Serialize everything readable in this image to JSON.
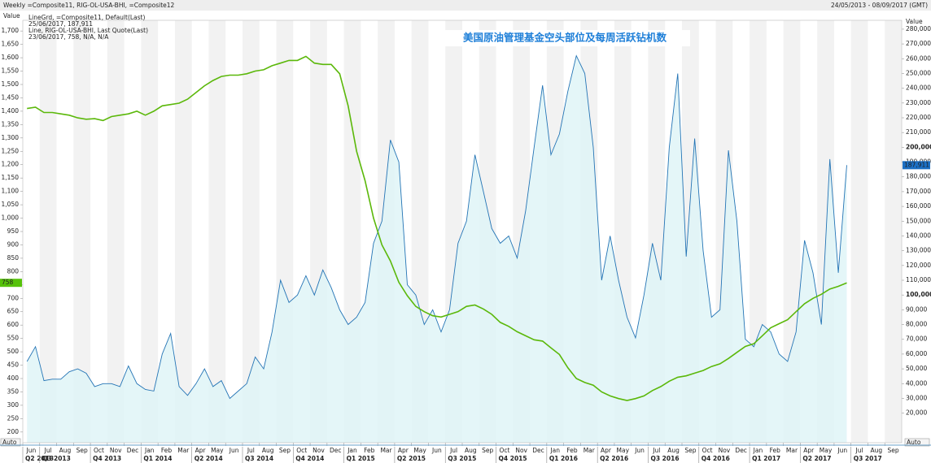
{
  "chart_data": {
    "type": "line",
    "title": "美国原油管理基金空头部位及每周活跃钻机数",
    "header_left": "Weekly =Composite11, RIG-OL-USA-BHI, =Composite12",
    "header_right": "24/05/2013 - 08/09/2017 (GMT)",
    "y_label": "Value",
    "y2_label": "Value",
    "corner_left": "Auto",
    "corner_right": "Auto",
    "categories": [
      "Jun",
      null,
      "Jul",
      null,
      "Aug",
      null,
      "Sep",
      null,
      "Oct",
      null,
      "Nov",
      null,
      "Dec",
      null,
      "Jan",
      null,
      "Feb",
      null,
      "Mar",
      null,
      "Apr",
      null,
      "May",
      null,
      "Jun",
      null,
      "Jul",
      null,
      "Aug",
      null,
      "Sep",
      null,
      "Oct",
      null,
      "Nov",
      null,
      "Dec",
      null,
      "Jan",
      null,
      "Feb",
      null,
      "Mar",
      null,
      "Apr",
      null,
      "May",
      null,
      "Jun",
      null,
      "Jul",
      null,
      "Aug",
      null,
      "Sep",
      null,
      "Oct",
      null,
      "Nov",
      null,
      "Dec",
      null,
      "Jan",
      null,
      "Feb",
      null,
      "Mar",
      null,
      "Apr",
      null,
      "May",
      null,
      "Jun",
      null,
      "Jul",
      null,
      "Aug",
      null,
      "Sep",
      null,
      "Oct",
      null,
      "Nov",
      null,
      "Dec",
      null,
      "Jan",
      null,
      "Feb",
      null,
      "Mar",
      null,
      "Apr",
      null,
      "May",
      null,
      "Jun",
      null,
      "Jul",
      null,
      "Aug",
      null,
      "Sep",
      null
    ],
    "quarters": [
      "Q2 2013",
      "Q3 2013",
      "Q4 2013",
      "Q1 2014",
      "Q2 2014",
      "Q3 2014",
      "Q4 2014",
      "Q1 2015",
      "Q2 2015",
      "Q3 2015",
      "Q4 2015",
      "Q1 2016",
      "Q2 2016",
      "Q3 2016",
      "Q4 2016",
      "Q1 2017",
      "Q2 2017",
      "Q3 2017"
    ],
    "series": [
      {
        "name": "LineGrd, =Composite11, Default(Last)",
        "detail": "25/06/2017, 187,911",
        "flag_label": "187,911",
        "color": "#2474b5",
        "area_color": "#dff4f7",
        "axis": "y2",
        "values": [
          55000,
          65000,
          42000,
          43000,
          43000,
          48000,
          50000,
          47000,
          38000,
          40000,
          40000,
          38000,
          52000,
          40000,
          36000,
          35000,
          60000,
          74000,
          38000,
          32000,
          40000,
          50000,
          38000,
          42000,
          30000,
          35000,
          40000,
          58000,
          50000,
          75000,
          110000,
          95000,
          100000,
          113000,
          100000,
          117000,
          105000,
          90000,
          80000,
          85000,
          95000,
          135000,
          150000,
          205000,
          190000,
          107000,
          100000,
          80000,
          90000,
          75000,
          90000,
          135000,
          150000,
          195000,
          170000,
          145000,
          135000,
          140000,
          125000,
          157000,
          200000,
          242000,
          195000,
          209000,
          238000,
          262000,
          250000,
          200000,
          110000,
          140000,
          110000,
          85000,
          71000,
          100000,
          135000,
          110000,
          200000,
          250000,
          126000,
          206000,
          130000,
          85000,
          90000,
          198000,
          150000,
          70000,
          65000,
          80000,
          75000,
          60000,
          55000,
          75000,
          137000,
          115000,
          80000,
          192000,
          115000,
          187911,
          null,
          null,
          null,
          null,
          null,
          null
        ]
      },
      {
        "name": "Line, RIG-OL-USA-BHI, Last Quote(Last)",
        "detail": "23/06/2017, 758, N/A, N/A",
        "color": "#5bb80a",
        "axis": "y",
        "values": [
          1410,
          1415,
          1395,
          1395,
          1390,
          1385,
          1375,
          1370,
          1372,
          1365,
          1380,
          1385,
          1390,
          1400,
          1385,
          1400,
          1420,
          1425,
          1430,
          1445,
          1470,
          1495,
          1515,
          1530,
          1535,
          1535,
          1540,
          1550,
          1555,
          1570,
          1580,
          1590,
          1590,
          1605,
          1580,
          1575,
          1575,
          1540,
          1420,
          1250,
          1140,
          1000,
          900,
          840,
          760,
          710,
          670,
          650,
          635,
          630,
          640,
          650,
          670,
          675,
          660,
          640,
          610,
          595,
          575,
          560,
          545,
          540,
          515,
          490,
          440,
          400,
          385,
          375,
          350,
          335,
          325,
          318,
          325,
          335,
          355,
          370,
          390,
          405,
          410,
          420,
          430,
          445,
          455,
          475,
          498,
          520,
          530,
          560,
          590,
          605,
          620,
          650,
          680,
          700,
          715,
          735,
          745,
          758,
          null,
          null,
          null,
          null,
          null,
          null
        ]
      }
    ],
    "ylim": [
      160,
      1740
    ],
    "yticks": [
      200,
      250,
      300,
      350,
      400,
      450,
      500,
      550,
      600,
      650,
      700,
      750,
      800,
      850,
      900,
      950,
      {
        "value": 1000,
        "label": "1,000"
      },
      {
        "value": 1050,
        "label": "1,050"
      },
      {
        "value": 1100,
        "label": "1,100"
      },
      {
        "value": 1150,
        "label": "1,150"
      },
      {
        "value": 1200,
        "label": "1,200"
      },
      {
        "value": 1250,
        "label": "1,250"
      },
      {
        "value": 1300,
        "label": "1,300"
      },
      {
        "value": 1350,
        "label": "1,350"
      },
      {
        "value": 1400,
        "label": "1,400"
      },
      {
        "value": 1450,
        "label": "1,450"
      },
      {
        "value": 1500,
        "label": "1,500"
      },
      {
        "value": 1550,
        "label": "1,550"
      },
      {
        "value": 1600,
        "label": "1,600"
      },
      {
        "value": 1650,
        "label": "1,650"
      },
      {
        "value": 1700,
        "label": "1,700"
      }
    ],
    "y2lim": [
      0,
      286000
    ],
    "y2ticks": [
      {
        "value": 20000,
        "label": "20,000"
      },
      {
        "value": 30000,
        "label": "30,000"
      },
      {
        "value": 40000,
        "label": "40,000"
      },
      {
        "value": 50000,
        "label": "50,000"
      },
      {
        "value": 60000,
        "label": "60,000"
      },
      {
        "value": 70000,
        "label": "70,000"
      },
      {
        "value": 80000,
        "label": "80,000"
      },
      {
        "value": 90000,
        "label": "90,000"
      },
      {
        "value": 100000,
        "label": "100,000"
      },
      {
        "value": 110000,
        "label": "110,000"
      },
      {
        "value": 120000,
        "label": "120,000"
      },
      {
        "value": 130000,
        "label": "130,000"
      },
      {
        "value": 140000,
        "label": "140,000"
      },
      {
        "value": 150000,
        "label": "150,000"
      },
      {
        "value": 160000,
        "label": "160,000"
      },
      {
        "value": 170000,
        "label": "170,000"
      },
      {
        "value": 180000,
        "label": "180,000"
      },
      {
        "value": 190000,
        "label": "190,000"
      },
      {
        "value": 200000,
        "label": "200,000"
      },
      {
        "value": 210000,
        "label": "210,000"
      },
      {
        "value": 220000,
        "label": "220,000"
      },
      {
        "value": 230000,
        "label": "230,000"
      },
      {
        "value": 240000,
        "label": "240,000"
      },
      {
        "value": 250000,
        "label": "250,000"
      },
      {
        "value": 260000,
        "label": "260,000"
      },
      {
        "value": 270000,
        "label": "270,000"
      },
      {
        "value": 280000,
        "label": "280,000"
      }
    ]
  }
}
